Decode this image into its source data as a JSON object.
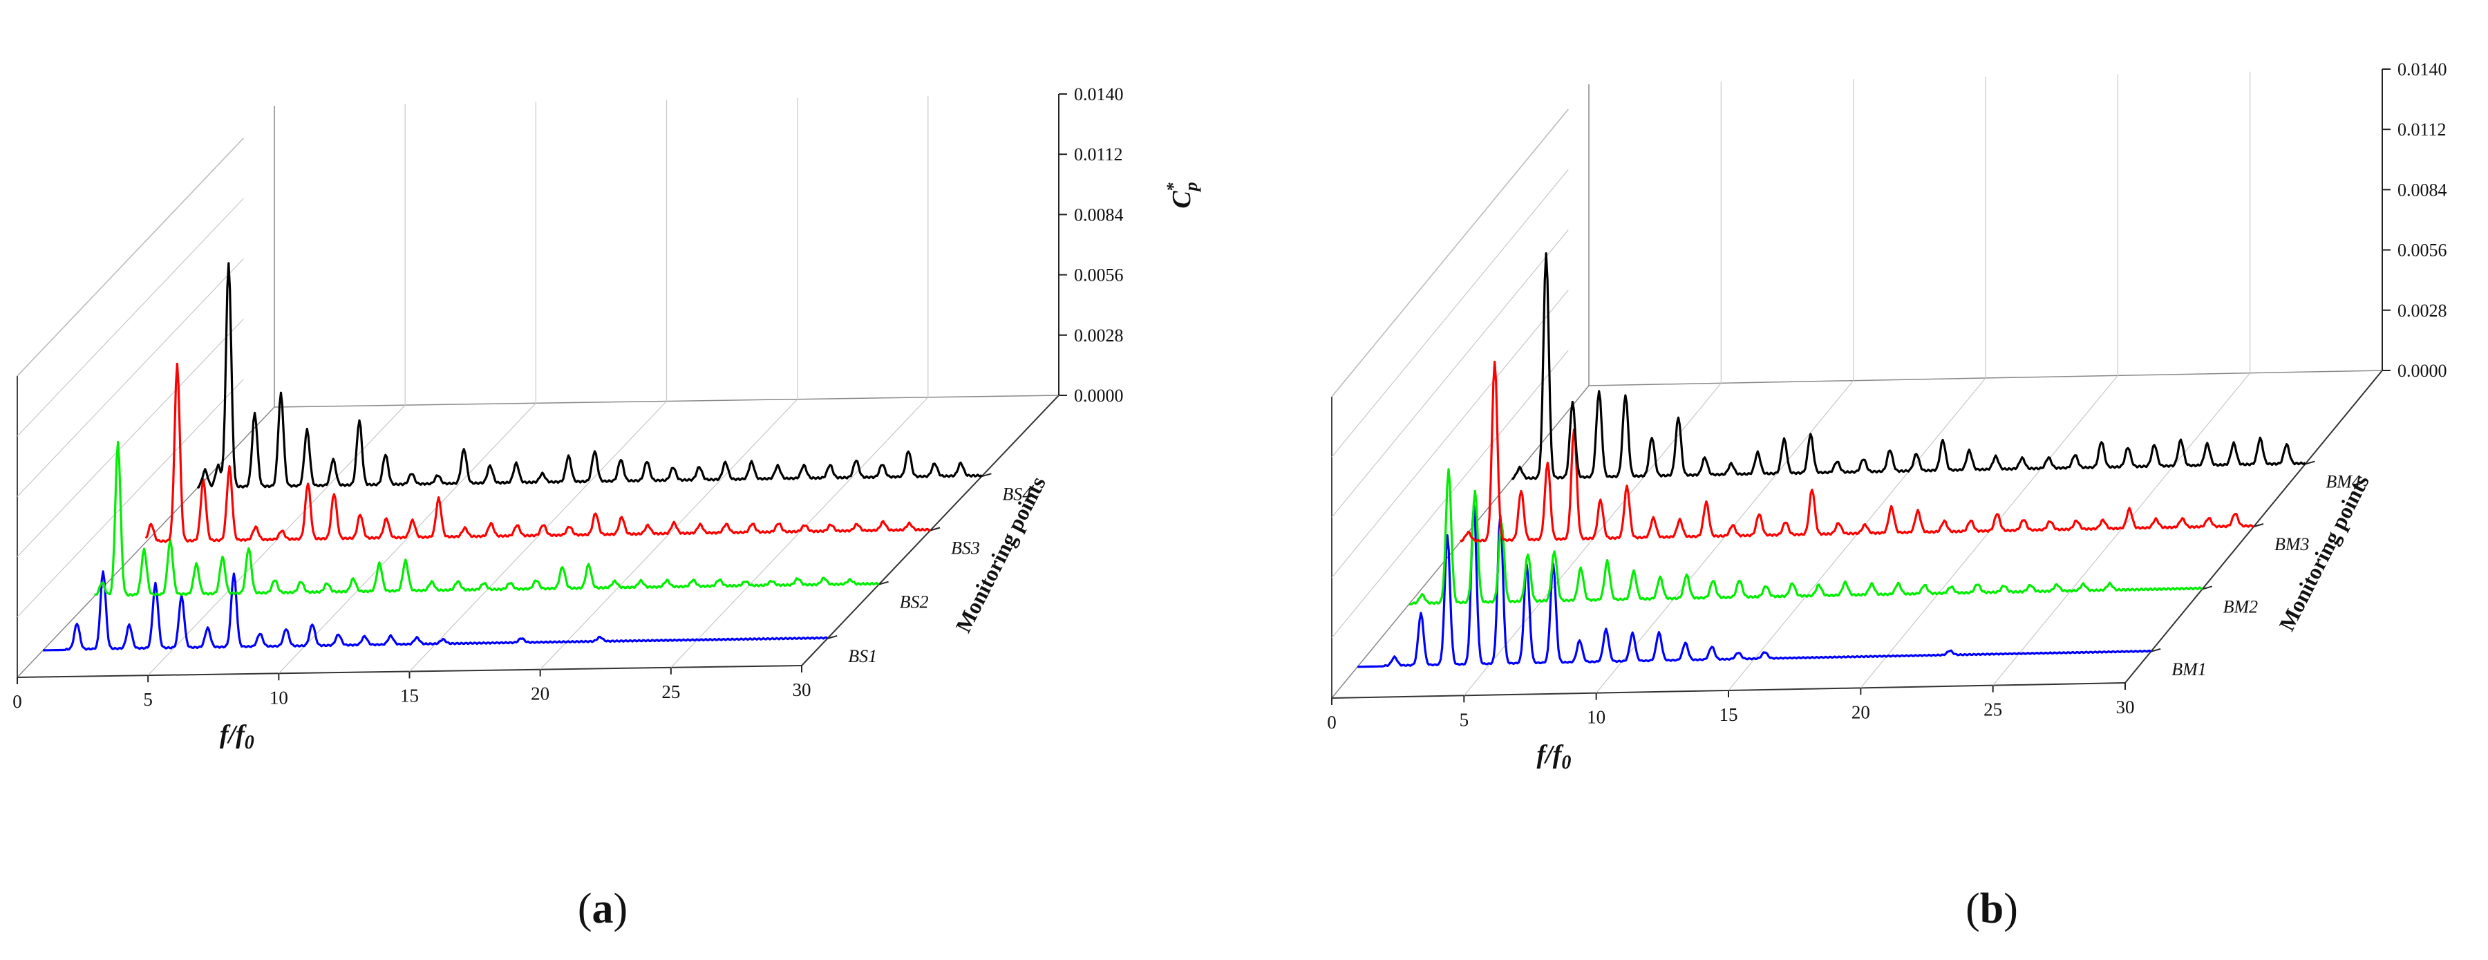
{
  "chart_data": [
    {
      "type": "line",
      "panel_label": "(a)",
      "panel_letter": "a",
      "xlabel": "f/f0",
      "xlabel_base": "f/f",
      "xlabel_sub": "0",
      "xticks": [
        0,
        5,
        10,
        15,
        20,
        25,
        30
      ],
      "xlim": [
        0,
        30
      ],
      "zlabel": "Cp*",
      "zticks": [
        "0.0000",
        "0.0028",
        "0.0056",
        "0.0084",
        "0.0112",
        "0.0140"
      ],
      "zlim": [
        0,
        0.014
      ],
      "depth_label": "Monitoring points",
      "grid": true,
      "series": [
        {
          "name": "BS1",
          "color": "#0000ff",
          "noise": 6e-05,
          "peaks": [
            [
              1.3,
              0.0012
            ],
            [
              2.3,
              0.0036
            ],
            [
              3.3,
              0.0011
            ],
            [
              4.3,
              0.003
            ],
            [
              5.3,
              0.0024
            ],
            [
              6.3,
              0.0009
            ],
            [
              7.3,
              0.0034
            ],
            [
              8.3,
              0.0006
            ],
            [
              9.3,
              0.0008
            ],
            [
              10.3,
              0.001
            ],
            [
              11.3,
              0.0005
            ],
            [
              12.3,
              0.0004
            ],
            [
              13.3,
              0.0004
            ],
            [
              14.3,
              0.0003
            ],
            [
              15.3,
              0.0002
            ],
            [
              18.3,
              0.0002
            ],
            [
              21.3,
              0.0002
            ]
          ]
        },
        {
          "name": "BS2",
          "color": "#00ee00",
          "noise": 8e-05,
          "peaks": [
            [
              0.3,
              0.0006
            ],
            [
              0.9,
              0.0071
            ],
            [
              1.9,
              0.0021
            ],
            [
              2.9,
              0.0025
            ],
            [
              3.9,
              0.0014
            ],
            [
              4.9,
              0.0017
            ],
            [
              5.9,
              0.0021
            ],
            [
              6.9,
              0.0006
            ],
            [
              7.9,
              0.0005
            ],
            [
              8.9,
              0.0004
            ],
            [
              9.9,
              0.0006
            ],
            [
              10.9,
              0.0013
            ],
            [
              11.9,
              0.0014
            ],
            [
              12.9,
              0.0004
            ],
            [
              13.9,
              0.0004
            ],
            [
              14.9,
              0.0003
            ],
            [
              15.9,
              0.0003
            ],
            [
              16.9,
              0.0004
            ],
            [
              17.9,
              0.001
            ],
            [
              18.9,
              0.0011
            ],
            [
              19.9,
              0.0003
            ],
            [
              20.9,
              0.0003
            ],
            [
              21.9,
              0.0003
            ],
            [
              22.9,
              0.0003
            ],
            [
              23.9,
              0.0003
            ],
            [
              24.9,
              0.0002
            ],
            [
              25.9,
              0.0002
            ],
            [
              26.9,
              0.0003
            ],
            [
              27.9,
              0.0003
            ],
            [
              28.9,
              0.0002
            ]
          ]
        },
        {
          "name": "BS3",
          "color": "#ff0000",
          "noise": 8e-05,
          "peaks": [
            [
              0.2,
              0.0008
            ],
            [
              1.2,
              0.0082
            ],
            [
              2.2,
              0.0028
            ],
            [
              3.2,
              0.0034
            ],
            [
              4.2,
              0.0006
            ],
            [
              5.2,
              0.0004
            ],
            [
              6.2,
              0.0026
            ],
            [
              7.2,
              0.0021
            ],
            [
              8.2,
              0.0011
            ],
            [
              9.2,
              0.0009
            ],
            [
              10.2,
              0.0008
            ],
            [
              11.2,
              0.0018
            ],
            [
              12.2,
              0.0004
            ],
            [
              13.2,
              0.0006
            ],
            [
              14.2,
              0.0005
            ],
            [
              15.2,
              0.0005
            ],
            [
              16.2,
              0.0004
            ],
            [
              17.2,
              0.001
            ],
            [
              18.2,
              0.0008
            ],
            [
              19.2,
              0.0004
            ],
            [
              20.2,
              0.0005
            ],
            [
              21.2,
              0.0004
            ],
            [
              22.2,
              0.0004
            ],
            [
              23.2,
              0.0004
            ],
            [
              24.2,
              0.0004
            ],
            [
              25.2,
              0.0003
            ],
            [
              26.2,
              0.0003
            ],
            [
              27.2,
              0.0003
            ],
            [
              28.2,
              0.0004
            ],
            [
              29.2,
              0.0003
            ]
          ]
        },
        {
          "name": "BS4",
          "color": "#000000",
          "noise": 8e-05,
          "peaks": [
            [
              0.3,
              0.0008
            ],
            [
              0.8,
              0.001
            ],
            [
              1.2,
              0.0104
            ],
            [
              2.2,
              0.0034
            ],
            [
              3.2,
              0.0043
            ],
            [
              4.2,
              0.0026
            ],
            [
              5.2,
              0.0012
            ],
            [
              6.2,
              0.003
            ],
            [
              7.2,
              0.0014
            ],
            [
              8.2,
              0.0005
            ],
            [
              9.2,
              0.0004
            ],
            [
              10.2,
              0.0016
            ],
            [
              11.2,
              0.0008
            ],
            [
              12.2,
              0.0009
            ],
            [
              13.2,
              0.0004
            ],
            [
              14.2,
              0.0012
            ],
            [
              15.2,
              0.0014
            ],
            [
              16.2,
              0.001
            ],
            [
              17.2,
              0.0009
            ],
            [
              18.2,
              0.0006
            ],
            [
              19.2,
              0.0006
            ],
            [
              20.2,
              0.0008
            ],
            [
              21.2,
              0.0008
            ],
            [
              22.2,
              0.0006
            ],
            [
              23.2,
              0.0006
            ],
            [
              24.2,
              0.0006
            ],
            [
              25.2,
              0.0008
            ],
            [
              26.2,
              0.0006
            ],
            [
              27.2,
              0.0012
            ],
            [
              28.2,
              0.0006
            ],
            [
              29.2,
              0.0006
            ]
          ]
        }
      ]
    },
    {
      "type": "line",
      "panel_label": "(b)",
      "panel_letter": "b",
      "xlabel": "f/f0",
      "xlabel_base": "f/f",
      "xlabel_sub": "0",
      "xticks": [
        0,
        5,
        10,
        15,
        20,
        25,
        30
      ],
      "xlim": [
        0,
        30
      ],
      "zlabel": "Cp*",
      "zticks": [
        "0.0000",
        "0.0028",
        "0.0056",
        "0.0084",
        "0.0112",
        "0.0140"
      ],
      "zlim": [
        0,
        0.014
      ],
      "depth_label": "Monitoring points",
      "grid": true,
      "series": [
        {
          "name": "BM1",
          "color": "#0000ff",
          "noise": 5e-05,
          "peaks": [
            [
              1.4,
              0.0004
            ],
            [
              2.4,
              0.0024
            ],
            [
              3.4,
              0.006
            ],
            [
              4.4,
              0.0074
            ],
            [
              5.4,
              0.0069
            ],
            [
              6.4,
              0.0046
            ],
            [
              7.4,
              0.0046
            ],
            [
              8.4,
              0.001
            ],
            [
              9.4,
              0.0015
            ],
            [
              10.4,
              0.0013
            ],
            [
              11.4,
              0.0013
            ],
            [
              12.4,
              0.0008
            ],
            [
              13.4,
              0.0006
            ],
            [
              14.4,
              0.0003
            ],
            [
              15.4,
              0.0003
            ],
            [
              22.4,
              0.0002
            ]
          ]
        },
        {
          "name": "BM2",
          "color": "#00ee00",
          "noise": 8e-05,
          "peaks": [
            [
              0.5,
              0.0004
            ],
            [
              1.5,
              0.0062
            ],
            [
              2.5,
              0.0052
            ],
            [
              3.5,
              0.0037
            ],
            [
              4.5,
              0.0022
            ],
            [
              5.5,
              0.0023
            ],
            [
              6.5,
              0.0015
            ],
            [
              7.5,
              0.0018
            ],
            [
              8.5,
              0.0013
            ],
            [
              9.5,
              0.001
            ],
            [
              10.5,
              0.0011
            ],
            [
              11.5,
              0.0008
            ],
            [
              12.5,
              0.0008
            ],
            [
              13.5,
              0.0005
            ],
            [
              14.5,
              0.0006
            ],
            [
              15.5,
              0.0005
            ],
            [
              16.5,
              0.0006
            ],
            [
              17.5,
              0.0005
            ],
            [
              18.5,
              0.0005
            ],
            [
              19.5,
              0.0004
            ],
            [
              20.5,
              0.0003
            ],
            [
              21.5,
              0.0004
            ],
            [
              22.5,
              0.0003
            ],
            [
              23.5,
              0.0003
            ],
            [
              24.5,
              0.0003
            ],
            [
              25.5,
              0.0003
            ],
            [
              26.5,
              0.0003
            ]
          ]
        },
        {
          "name": "BM3",
          "color": "#ff0000",
          "noise": 8e-05,
          "peaks": [
            [
              0.3,
              0.0004
            ],
            [
              1.3,
              0.0083
            ],
            [
              2.3,
              0.0023
            ],
            [
              3.3,
              0.0036
            ],
            [
              4.3,
              0.0051
            ],
            [
              5.3,
              0.0018
            ],
            [
              6.3,
              0.0024
            ],
            [
              7.3,
              0.0009
            ],
            [
              8.3,
              0.0008
            ],
            [
              9.3,
              0.0016
            ],
            [
              10.3,
              0.0005
            ],
            [
              11.3,
              0.001
            ],
            [
              12.3,
              0.0006
            ],
            [
              13.3,
              0.0021
            ],
            [
              14.3,
              0.0005
            ],
            [
              15.3,
              0.0004
            ],
            [
              16.3,
              0.0012
            ],
            [
              17.3,
              0.001
            ],
            [
              18.3,
              0.0005
            ],
            [
              19.3,
              0.0005
            ],
            [
              20.3,
              0.0008
            ],
            [
              21.3,
              0.0005
            ],
            [
              22.3,
              0.0004
            ],
            [
              23.3,
              0.0004
            ],
            [
              24.3,
              0.0004
            ],
            [
              25.3,
              0.0009
            ],
            [
              26.3,
              0.0004
            ],
            [
              27.3,
              0.0004
            ],
            [
              28.3,
              0.0004
            ],
            [
              29.3,
              0.0006
            ]
          ]
        },
        {
          "name": "BM4",
          "color": "#000000",
          "noise": 8e-05,
          "peaks": [
            [
              0.3,
              0.0005
            ],
            [
              1.3,
              0.0104
            ],
            [
              2.3,
              0.0035
            ],
            [
              3.3,
              0.004
            ],
            [
              4.3,
              0.0038
            ],
            [
              5.3,
              0.0018
            ],
            [
              6.3,
              0.0027
            ],
            [
              7.3,
              0.0008
            ],
            [
              8.3,
              0.0005
            ],
            [
              9.3,
              0.001
            ],
            [
              10.3,
              0.0016
            ],
            [
              11.3,
              0.0018
            ],
            [
              12.3,
              0.0005
            ],
            [
              13.3,
              0.0006
            ],
            [
              14.3,
              0.001
            ],
            [
              15.3,
              0.0008
            ],
            [
              16.3,
              0.0014
            ],
            [
              17.3,
              0.0009
            ],
            [
              18.3,
              0.0006
            ],
            [
              19.3,
              0.0005
            ],
            [
              20.3,
              0.0005
            ],
            [
              21.3,
              0.0006
            ],
            [
              22.3,
              0.0012
            ],
            [
              23.3,
              0.0009
            ],
            [
              24.3,
              0.001
            ],
            [
              25.3,
              0.0012
            ],
            [
              26.3,
              0.001
            ],
            [
              27.3,
              0.001
            ],
            [
              28.3,
              0.0012
            ],
            [
              29.3,
              0.0009
            ]
          ]
        }
      ]
    }
  ]
}
